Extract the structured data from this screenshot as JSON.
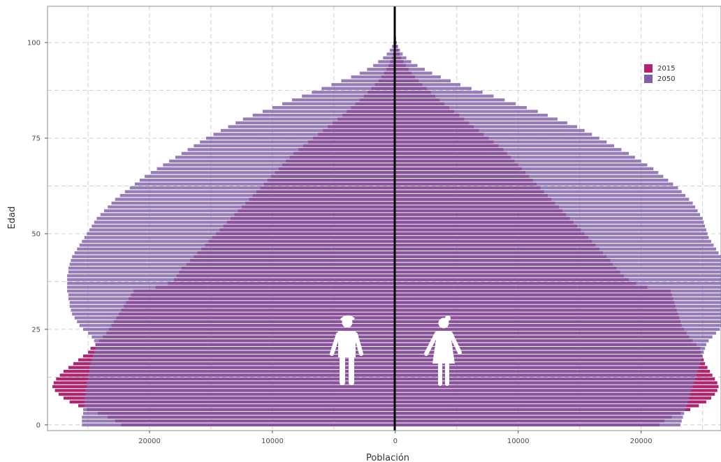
{
  "chart_data": {
    "type": "bar",
    "orientation": "horizontal-population-pyramid",
    "xlabel": "Población",
    "ylabel": "Edad",
    "x_ticks": [
      {
        "value": -20000,
        "label": "20000"
      },
      {
        "value": -10000,
        "label": "10000"
      },
      {
        "value": 0,
        "label": "0"
      },
      {
        "value": 10000,
        "label": "10000"
      },
      {
        "value": 20000,
        "label": "20000"
      }
    ],
    "y_ticks": [
      0,
      25,
      50,
      75,
      100
    ],
    "xlim": [
      -28300,
      26500
    ],
    "ylim": [
      -1.5,
      109.5
    ],
    "grid": true,
    "legend_position": "top-right",
    "colors": {
      "2015": "#B0256E",
      "2050": "#7F5FA8"
    },
    "series": [
      {
        "name": "2015",
        "ages_from": 0,
        "left": [
          22300,
          22800,
          23400,
          24200,
          25100,
          25800,
          26500,
          27000,
          27400,
          27700,
          27900,
          27800,
          27600,
          27300,
          27000,
          26600,
          26200,
          25800,
          25400,
          25000,
          24800,
          24400,
          24100,
          23800,
          23500,
          23300,
          23100,
          22900,
          22700,
          22500,
          22300,
          22100,
          21900,
          21700,
          21500,
          21300,
          19500,
          18500,
          18000,
          17800,
          17600,
          17400,
          17000,
          16700,
          16400,
          16100,
          15800,
          15500,
          15200,
          14900,
          14600,
          14300,
          14000,
          13700,
          13400,
          13100,
          12800,
          12500,
          12200,
          11900,
          11600,
          11300,
          11000,
          10700,
          10400,
          10100,
          9800,
          9500,
          9200,
          8900,
          8600,
          8300,
          7900,
          7500,
          7100,
          6700,
          6300,
          5900,
          5500,
          5100,
          4700,
          4300,
          3950,
          3600,
          3250,
          2900,
          2550,
          2250,
          1950,
          1650,
          1380,
          1140,
          920,
          730,
          560,
          410,
          290,
          190,
          120,
          70,
          40,
          25,
          15,
          8
        ],
        "right": [
          21500,
          21900,
          22500,
          23200,
          24000,
          24700,
          25300,
          25700,
          26000,
          26200,
          26300,
          26200,
          26000,
          25800,
          25600,
          25400,
          25200,
          25100,
          25000,
          24900,
          24800,
          24500,
          24200,
          23900,
          23700,
          23500,
          23300,
          23200,
          23100,
          23000,
          22900,
          22800,
          22700,
          22600,
          22500,
          22400,
          20500,
          19600,
          19000,
          18600,
          18300,
          18000,
          17700,
          17500,
          17200,
          16900,
          16600,
          16300,
          16000,
          15700,
          15400,
          15100,
          14800,
          14500,
          14200,
          13900,
          13600,
          13300,
          13000,
          12700,
          12400,
          12100,
          11800,
          11500,
          11200,
          10900,
          10600,
          10300,
          10000,
          9700,
          9400,
          9100,
          8800,
          8400,
          8000,
          7600,
          7200,
          6800,
          6400,
          6000,
          5600,
          5200,
          4800,
          4400,
          4000,
          3600,
          3250,
          2900,
          2550,
          2200,
          1900,
          1600,
          1330,
          1080,
          860,
          660,
          490,
          350,
          240,
          150,
          90,
          50,
          25,
          12
        ]
      },
      {
        "name": "2050",
        "ages_from": 0,
        "left": [
          25500,
          25500,
          25500,
          25400,
          25400,
          25300,
          25300,
          25300,
          25200,
          25200,
          25100,
          25100,
          25000,
          25000,
          24900,
          24900,
          24800,
          24700,
          24600,
          24500,
          24400,
          24400,
          24500,
          24700,
          25000,
          25400,
          25700,
          25900,
          26100,
          26300,
          26400,
          26500,
          26500,
          26600,
          26600,
          26700,
          26700,
          26700,
          26700,
          26700,
          26600,
          26600,
          26500,
          26400,
          26300,
          26100,
          25900,
          25700,
          25500,
          25300,
          25100,
          24900,
          24700,
          24500,
          24300,
          24000,
          23700,
          23400,
          23100,
          22800,
          22400,
          22000,
          21600,
          21200,
          20800,
          20400,
          19900,
          19400,
          18900,
          18400,
          17900,
          17400,
          16900,
          16400,
          15900,
          15400,
          14800,
          14200,
          13600,
          13000,
          12400,
          11600,
          10800,
          10000,
          9200,
          8400,
          7600,
          6800,
          6000,
          5200,
          4400,
          3600,
          2900,
          2300,
          1800,
          1400,
          1000,
          700,
          450,
          270,
          150,
          80,
          40,
          20
        ],
        "right": [
          23200,
          23300,
          23400,
          23500,
          23600,
          23700,
          23800,
          23900,
          24000,
          24100,
          24200,
          24300,
          24400,
          24500,
          24600,
          24700,
          24800,
          24900,
          25000,
          25100,
          25200,
          25300,
          25500,
          25800,
          26100,
          26400,
          26600,
          26800,
          26900,
          27000,
          27000,
          27100,
          27100,
          27100,
          27200,
          27200,
          27200,
          27200,
          27100,
          27100,
          27000,
          26900,
          26800,
          26700,
          26500,
          26300,
          26100,
          25900,
          25700,
          25500,
          25400,
          25300,
          25200,
          25100,
          25000,
          24800,
          24600,
          24400,
          24200,
          23900,
          23600,
          23300,
          23000,
          22600,
          22200,
          21800,
          21400,
          21000,
          20500,
          20000,
          19500,
          19000,
          18400,
          17800,
          17200,
          16600,
          16000,
          15400,
          14800,
          14000,
          13200,
          12400,
          11600,
          10700,
          9800,
          8900,
          8000,
          7100,
          6200,
          5300,
          4500,
          3700,
          3000,
          2400,
          1800,
          1300,
          900,
          600,
          380,
          220,
          120,
          60,
          30,
          15
        ]
      }
    ]
  }
}
